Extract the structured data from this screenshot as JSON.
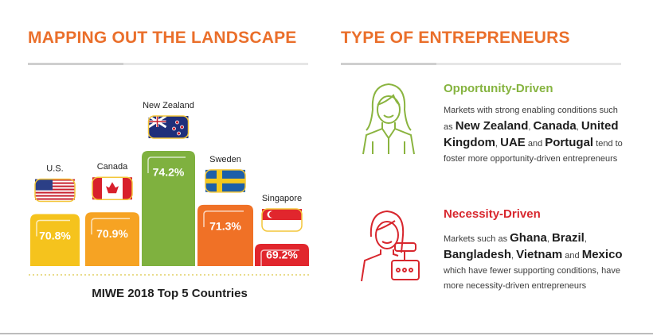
{
  "left_heading": "MAPPING OUT THE LANDSCAPE",
  "right_heading": "TYPE OF ENTREPRENEURS",
  "chart_data": {
    "type": "bar",
    "title": "MIWE 2018 Top 5 Countries",
    "categories": [
      "U.S.",
      "Canada",
      "New Zealand",
      "Sweden",
      "Singapore"
    ],
    "values": [
      70.8,
      70.9,
      74.2,
      71.3,
      69.2
    ],
    "value_labels": [
      "70.8%",
      "70.9%",
      "74.2%",
      "71.3%",
      "69.2%"
    ],
    "colors": [
      "#f5c31d",
      "#f6a323",
      "#7fb13f",
      "#f07126",
      "#e1262d"
    ]
  },
  "types": [
    {
      "title": "Opportunity-Driven",
      "color": "#86b440",
      "parts": [
        {
          "text": "Markets with strong enabling conditions such as ",
          "bold": false
        },
        {
          "text": "New Zealand",
          "bold": true
        },
        {
          "text": ", ",
          "bold": false
        },
        {
          "text": "Canada",
          "bold": true
        },
        {
          "text": ", ",
          "bold": false
        },
        {
          "text": "United Kingdom",
          "bold": true
        },
        {
          "text": ", ",
          "bold": false
        },
        {
          "text": "UAE",
          "bold": true
        },
        {
          "text": " and ",
          "bold": false
        },
        {
          "text": "Portugal",
          "bold": true
        },
        {
          "text": " tend to foster more opportunity-driven entrepreneurs",
          "bold": false
        }
      ]
    },
    {
      "title": "Necessity-Driven",
      "color": "#d8272e",
      "parts": [
        {
          "text": "Markets such as ",
          "bold": false
        },
        {
          "text": "Ghana",
          "bold": true
        },
        {
          "text": ", ",
          "bold": false
        },
        {
          "text": "Brazil",
          "bold": true
        },
        {
          "text": ", ",
          "bold": false
        },
        {
          "text": "Bangladesh",
          "bold": true
        },
        {
          "text": ", ",
          "bold": false
        },
        {
          "text": "Vietnam",
          "bold": true
        },
        {
          "text": " and ",
          "bold": false
        },
        {
          "text": "Mexico",
          "bold": true
        },
        {
          "text": " which have fewer supporting conditions, have more necessity-driven entrepreneurs",
          "bold": false
        }
      ]
    }
  ]
}
